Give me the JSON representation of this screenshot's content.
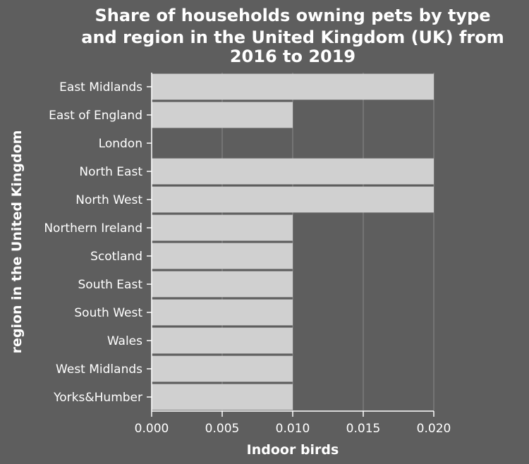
{
  "chart_data": {
    "type": "bar",
    "orientation": "horizontal",
    "title_lines": [
      "Share of households owning pets by type",
      "and region in the United Kingdom (UK) from",
      "2016 to 2019"
    ],
    "xlabel": "Indoor birds",
    "ylabel": "region in the United Kingdom",
    "categories": [
      "East Midlands",
      "East of England",
      "London",
      "North East",
      "North West",
      "Northern Ireland",
      "Scotland",
      "South East",
      "South West",
      "Wales",
      "West Midlands",
      "Yorks&Humber"
    ],
    "values": [
      0.02,
      0.01,
      0,
      0.02,
      0.02,
      0.01,
      0.01,
      0.01,
      0.01,
      0.01,
      0.01,
      0.01
    ],
    "xlim": [
      0,
      0.02
    ],
    "xticks": [
      0,
      0.005,
      0.01,
      0.015,
      0.02
    ],
    "xtick_labels": [
      "0.000",
      "0.005",
      "0.010",
      "0.015",
      "0.020"
    ],
    "grid": "vertical",
    "colors": {
      "background": "#5e5e5e",
      "bar": "#d0d0d0",
      "grid": "#8a8a8a",
      "text": "#ffffff"
    }
  }
}
